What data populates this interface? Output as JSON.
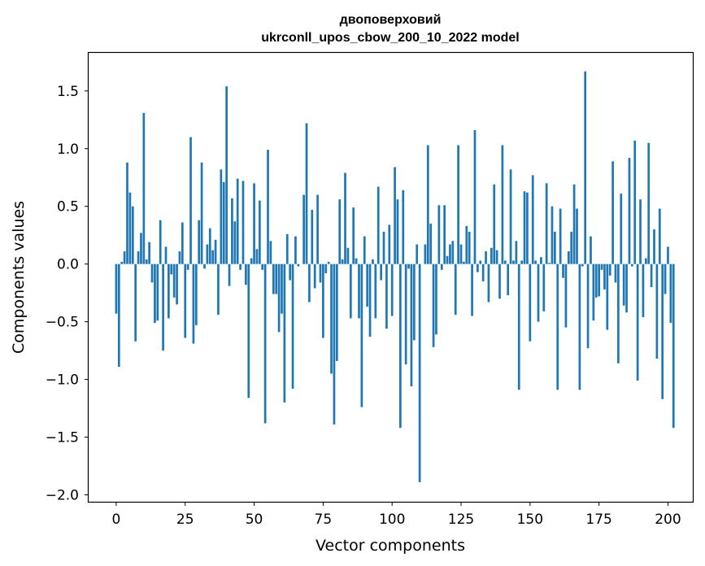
{
  "chart_data": {
    "type": "bar",
    "title_line1": "двоповерховий",
    "title_line2": "ukrconll_upos_cbow_200_10_2022 model",
    "xlabel": "Vector components",
    "ylabel": "Components values",
    "xlim": [
      -10,
      209
    ],
    "ylim": [
      -2.06,
      1.83
    ],
    "xticks": [
      0,
      25,
      50,
      75,
      100,
      125,
      150,
      175,
      200
    ],
    "xtick_labels": [
      "0",
      "25",
      "50",
      "75",
      "100",
      "125",
      "150",
      "175",
      "200"
    ],
    "yticks": [
      -2.0,
      -1.5,
      -1.0,
      -0.5,
      0.0,
      0.5,
      1.0,
      1.5
    ],
    "ytick_labels": [
      "−2.0",
      "−1.5",
      "−1.0",
      "−0.5",
      "0.0",
      "0.5",
      "1.0",
      "1.5"
    ],
    "bar_color": "#1f77b4",
    "grid": false,
    "values": [
      -0.43,
      -0.89,
      0.02,
      0.11,
      0.88,
      0.62,
      0.5,
      -0.67,
      0.11,
      0.27,
      1.31,
      0.04,
      0.19,
      -0.16,
      -0.51,
      -0.49,
      0.38,
      -0.75,
      0.15,
      -0.47,
      -0.09,
      -0.29,
      -0.35,
      0.11,
      0.36,
      -0.64,
      -0.05,
      1.1,
      -0.69,
      -0.53,
      0.38,
      0.88,
      -0.04,
      0.17,
      0.31,
      0.12,
      0.21,
      -0.44,
      0.82,
      0.71,
      1.54,
      -0.19,
      0.57,
      0.37,
      0.74,
      -0.05,
      0.72,
      -0.18,
      -1.16,
      0.05,
      0.7,
      0.13,
      0.55,
      -0.05,
      -1.38,
      0.99,
      0.2,
      -0.26,
      -0.26,
      -0.59,
      -0.43,
      -1.2,
      0.26,
      -0.14,
      -1.08,
      0.24,
      -0.02,
      0.0,
      0.6,
      1.22,
      -0.33,
      0.47,
      -0.21,
      0.6,
      -0.16,
      -0.64,
      -0.08,
      0.02,
      -0.95,
      -1.39,
      -0.84,
      0.56,
      0.04,
      0.79,
      0.14,
      -0.47,
      0.49,
      0.05,
      -0.47,
      -1.24,
      0.24,
      -0.37,
      -0.63,
      0.04,
      -0.47,
      0.67,
      -0.14,
      0.28,
      -0.56,
      0.34,
      -0.45,
      0.84,
      0.56,
      -1.42,
      0.64,
      -0.87,
      -0.04,
      -1.06,
      -0.66,
      0.17,
      -1.89,
      0.0,
      0.17,
      1.03,
      0.35,
      -0.72,
      -0.61,
      0.51,
      -0.05,
      0.51,
      0.07,
      0.17,
      0.2,
      -0.44,
      1.03,
      0.17,
      0.02,
      0.33,
      0.28,
      -0.45,
      1.16,
      -0.07,
      0.03,
      -0.15,
      0.11,
      -0.33,
      0.14,
      0.69,
      0.12,
      -0.3,
      1.03,
      0.03,
      -0.27,
      0.82,
      0.03,
      0.2,
      -1.09,
      0.03,
      0.63,
      0.62,
      -0.67,
      0.77,
      0.03,
      -0.5,
      0.06,
      -0.41,
      0.7,
      0.01,
      0.5,
      0.28,
      -1.09,
      0.48,
      -0.12,
      -0.55,
      0.11,
      0.28,
      0.69,
      0.48,
      -1.09,
      -0.02,
      1.67,
      -0.73,
      0.24,
      -0.49,
      -0.29,
      -0.28,
      -0.05,
      -0.22,
      -0.57,
      -0.1,
      0.89,
      -0.16,
      -0.86,
      0.61,
      -0.36,
      -0.42,
      0.92,
      -0.02,
      1.07,
      -1.01,
      0.56,
      -0.46,
      0.05,
      1.05,
      -0.2,
      0.3,
      -0.82,
      0.48,
      -1.17,
      -0.26,
      0.15,
      -0.51,
      -1.42
    ]
  }
}
